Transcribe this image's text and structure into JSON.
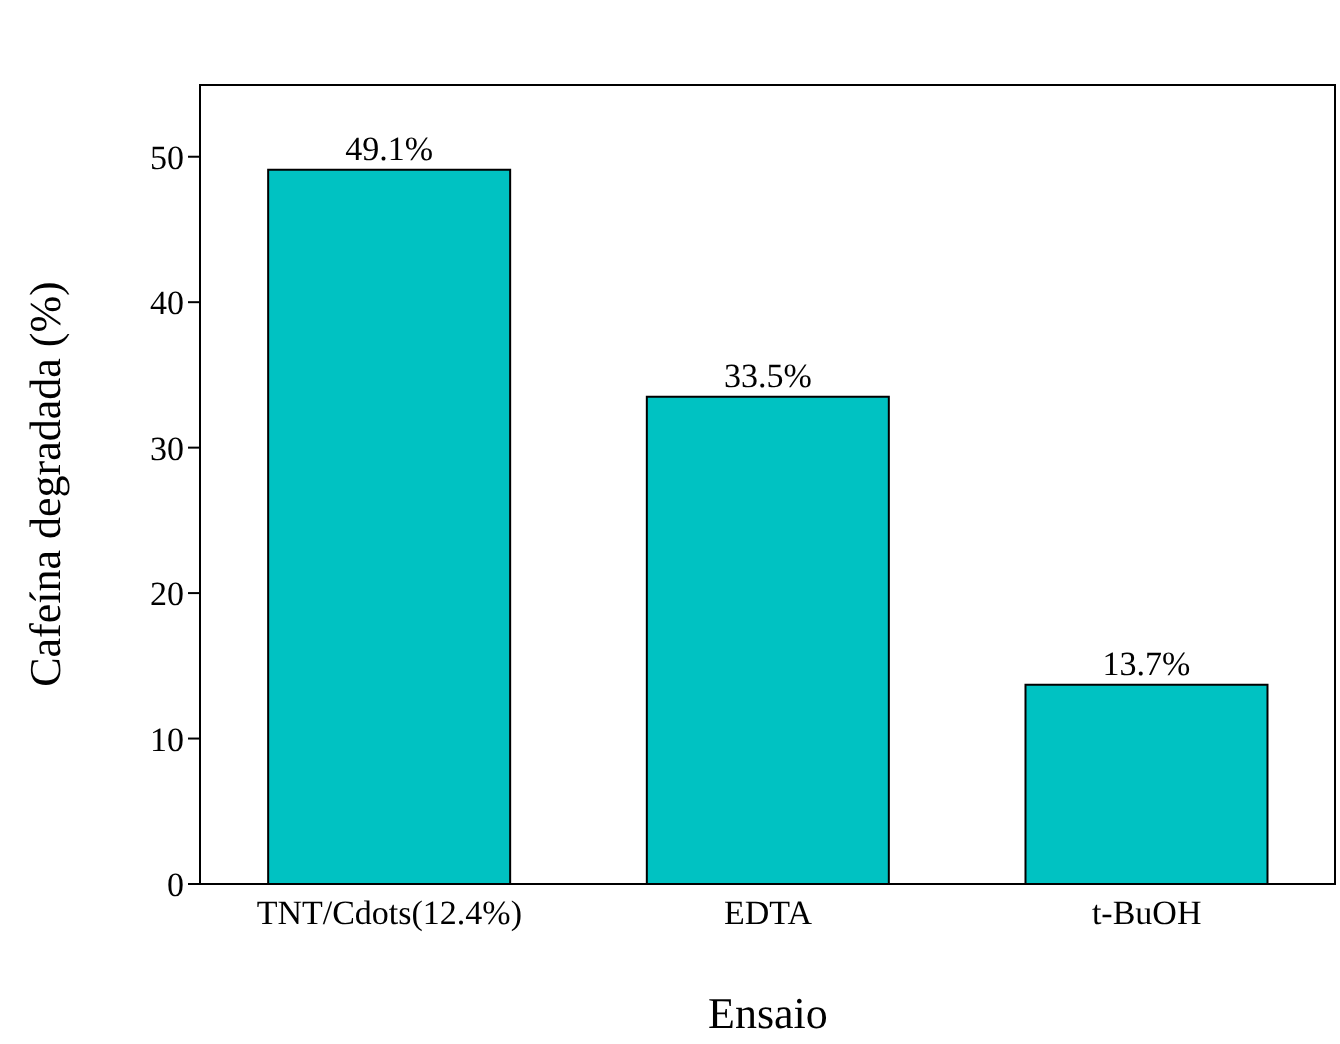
{
  "chart_data": {
    "type": "bar",
    "xlabel": "Ensaio",
    "ylabel": "Cafeína degradada (%)",
    "categories": [
      "TNT/Cdots(12.4%)",
      "EDTA",
      "t-BuOH"
    ],
    "values": [
      49.1,
      33.5,
      13.7
    ],
    "value_labels": [
      "49.1%",
      "33.5%",
      "13.7%"
    ],
    "color": "#00c2c2",
    "ylim": [
      0,
      55
    ],
    "yticks": [
      0,
      10,
      20,
      30,
      40,
      50
    ],
    "grid": false,
    "legend": false
  }
}
